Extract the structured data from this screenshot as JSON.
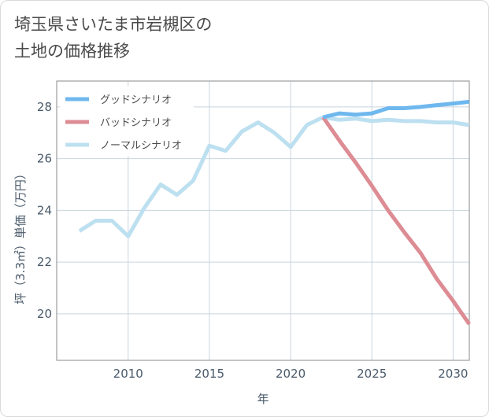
{
  "chart_data": {
    "type": "line",
    "title": "埼玉県さいたま市岩槻区の\n土地の価格推移",
    "xlabel": "年",
    "ylabel": "坪（3.3㎡）単価（万円）",
    "xlim": [
      2005.6,
      2031.0
    ],
    "ylim": [
      18.2,
      29.0
    ],
    "xticks": [
      2010,
      2015,
      2020,
      2025,
      2030
    ],
    "yticks": [
      20,
      22,
      24,
      26,
      28
    ],
    "grid": true,
    "legend_position": "top-left",
    "series": [
      {
        "name": "グッドシナリオ",
        "color": "#6fb8ee",
        "x": [
          2022,
          2023,
          2024,
          2025,
          2026,
          2027,
          2028,
          2029,
          2030,
          2031
        ],
        "values": [
          27.6,
          27.75,
          27.7,
          27.75,
          27.95,
          27.95,
          28.0,
          28.07,
          28.13,
          28.2
        ]
      },
      {
        "name": "バッドシナリオ",
        "color": "#dd8c94",
        "x": [
          2022,
          2023,
          2024,
          2025,
          2026,
          2027,
          2028,
          2029,
          2030,
          2031
        ],
        "values": [
          27.6,
          26.7,
          25.85,
          24.95,
          24.0,
          23.15,
          22.35,
          21.35,
          20.5,
          19.6
        ]
      },
      {
        "name": "ノーマルシナリオ",
        "color": "#bde0f0",
        "x": [
          2007,
          2008,
          2009,
          2010,
          2011,
          2012,
          2013,
          2014,
          2015,
          2016,
          2017,
          2018,
          2019,
          2020,
          2021,
          2022,
          2023,
          2024,
          2025,
          2026,
          2027,
          2028,
          2029,
          2030,
          2031
        ],
        "values": [
          23.2,
          23.6,
          23.6,
          23.0,
          24.1,
          25.0,
          24.6,
          25.15,
          26.5,
          26.3,
          27.05,
          27.4,
          27.0,
          26.45,
          27.3,
          27.6,
          27.5,
          27.55,
          27.45,
          27.5,
          27.45,
          27.45,
          27.4,
          27.4,
          27.3
        ]
      }
    ]
  }
}
